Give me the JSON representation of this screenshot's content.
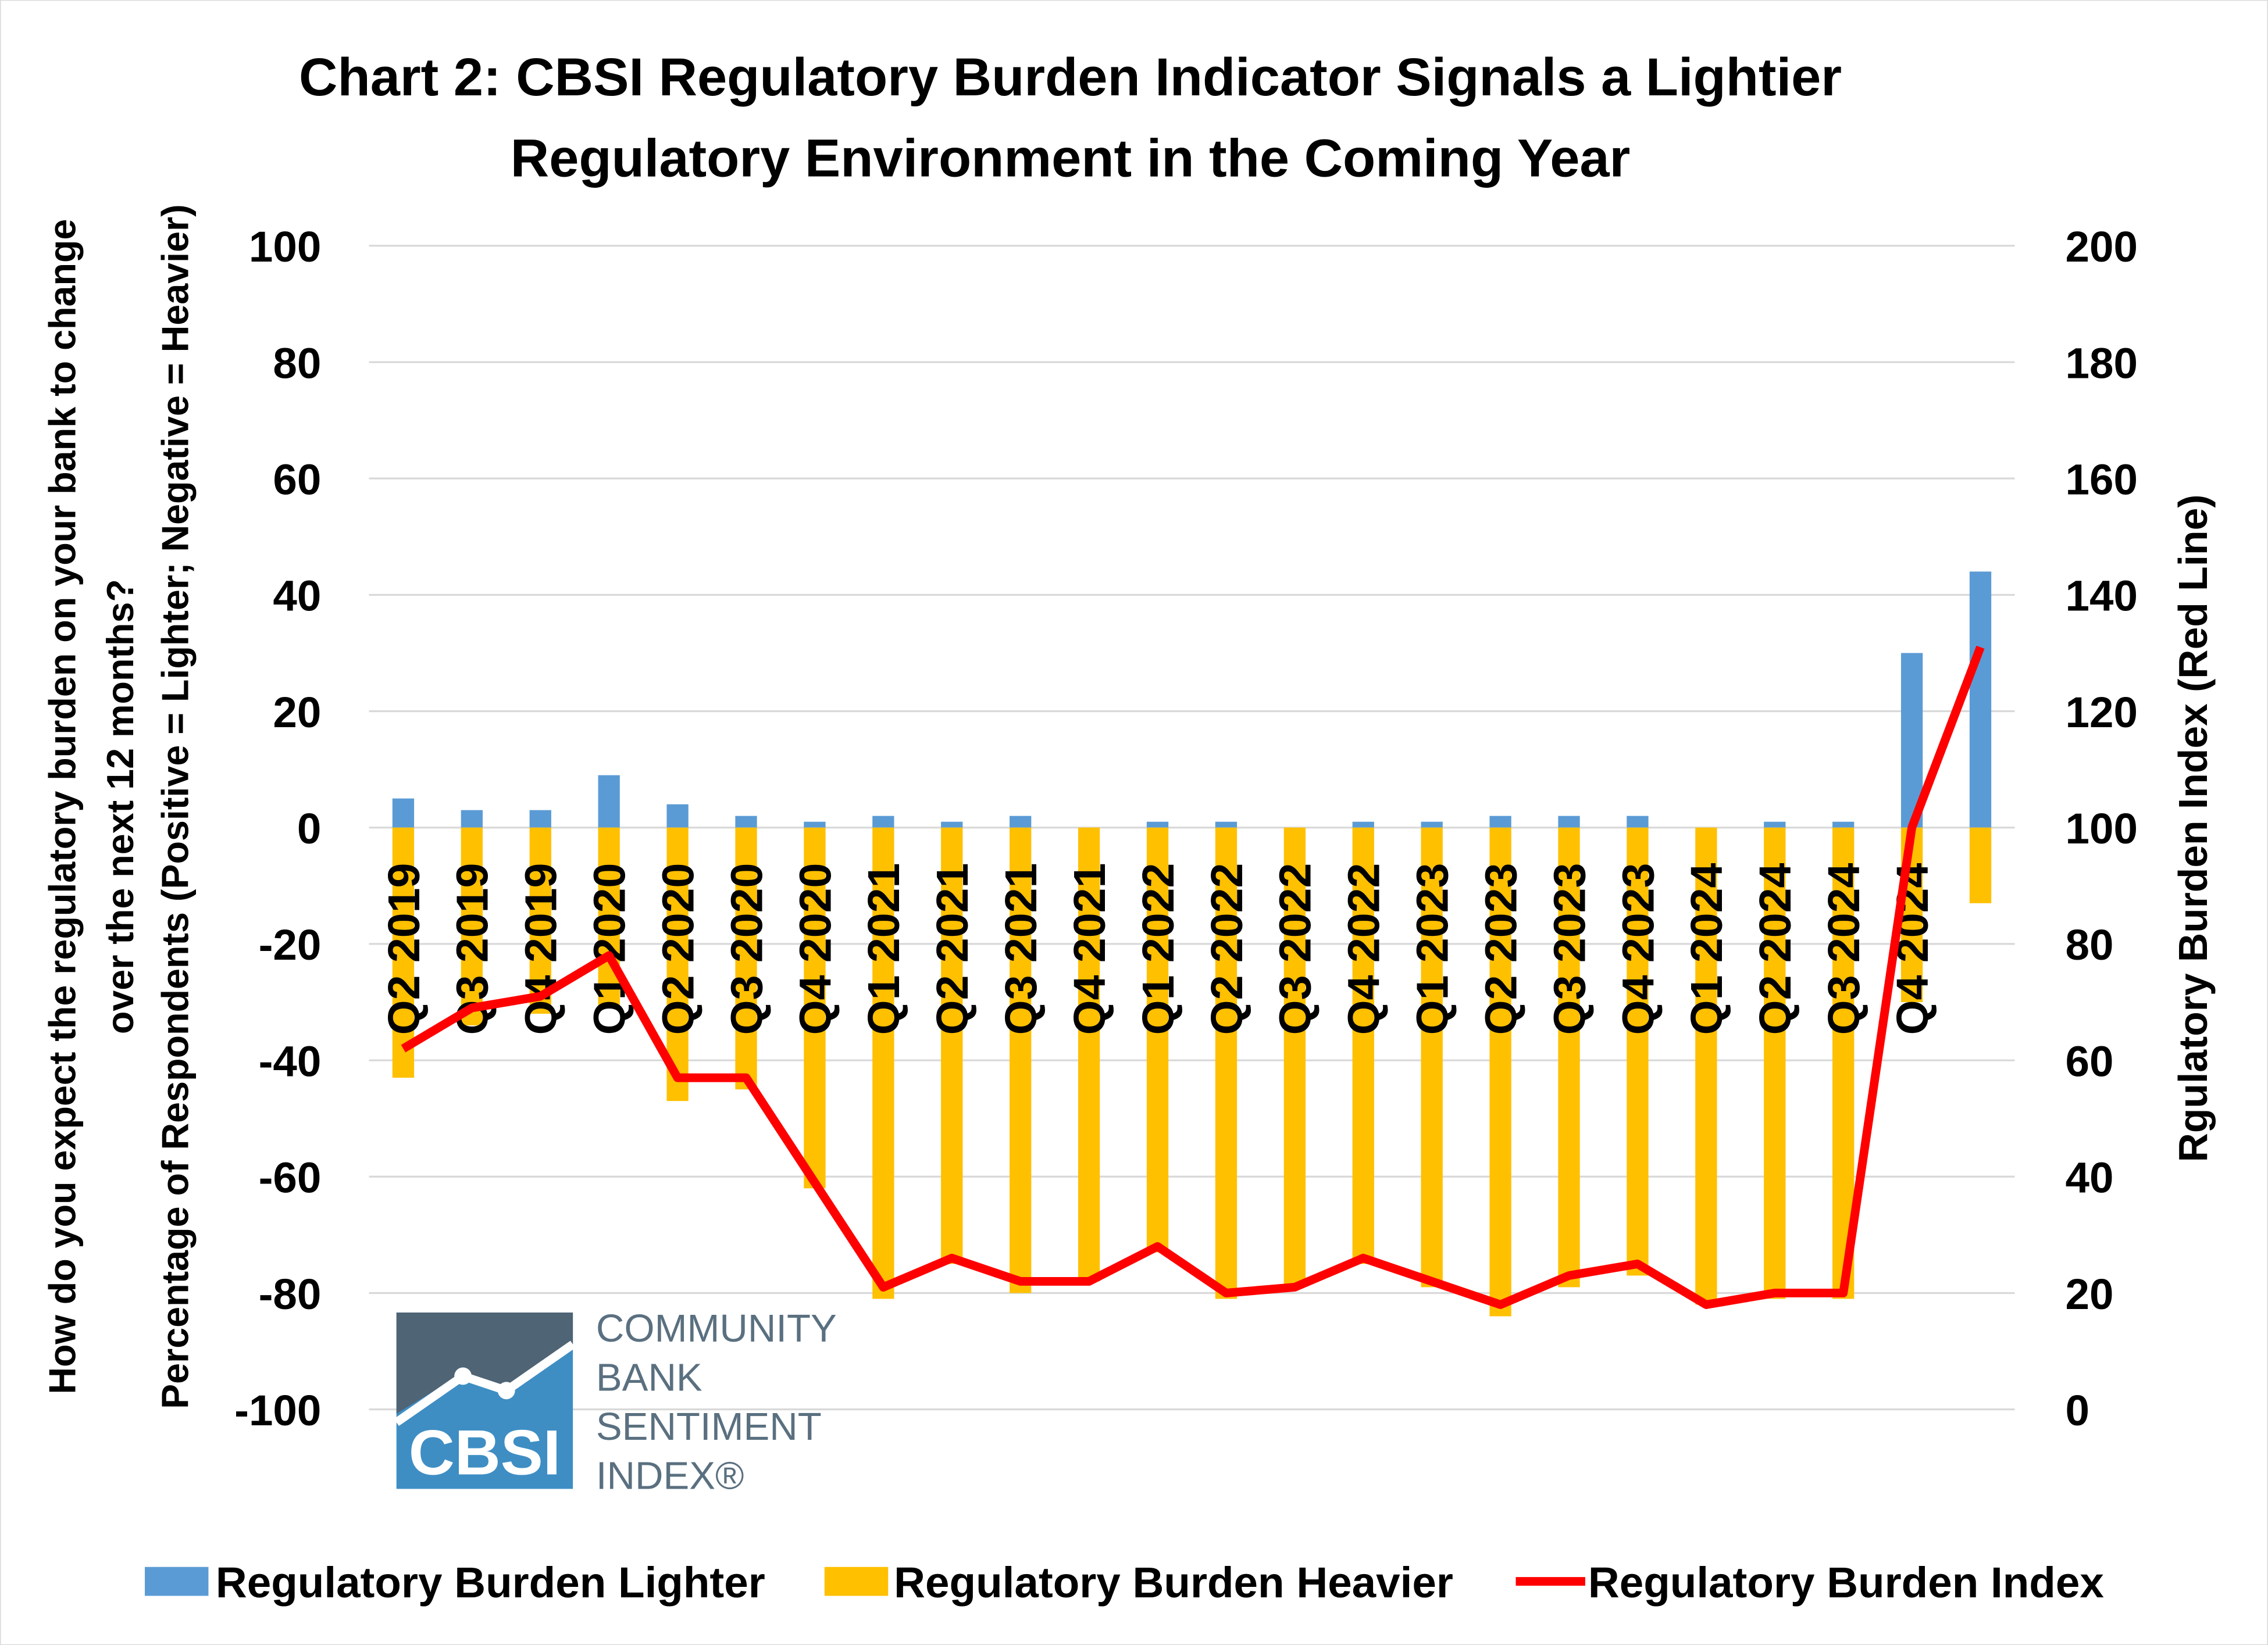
{
  "chart_data": {
    "type": "bar",
    "title_line1": "Chart 2: CBSI Regulatory Burden Indicator Signals a Lightier",
    "title_line2": "Regulatory Environment in the Coming Year",
    "ylabel_line1": "How do you expect the regulatory burden on your bank to change",
    "ylabel_line2": "over the next 12 months?",
    "ylabel_line3": "Percentage of Respondents (Positive = Lighter; Negative = Heavier)",
    "y2label": "Rgulatory Burden Index (Red Line)",
    "ylim": [
      -100,
      100
    ],
    "y2lim": [
      0,
      200
    ],
    "yticks": [
      100,
      80,
      60,
      40,
      20,
      0,
      -20,
      -40,
      -60,
      -80,
      -100
    ],
    "y2ticks": [
      200,
      180,
      160,
      140,
      120,
      100,
      80,
      60,
      40,
      20,
      0
    ],
    "grid": true,
    "legend_placement": "bottom",
    "categories": [
      "Q2 2019",
      "Q3 2019",
      "Q4 2019",
      "Q1 2020",
      "Q2 2020",
      "Q3 2020",
      "Q4 2020",
      "Q1 2021",
      "Q2 2021",
      "Q3 2021",
      "Q4 2021",
      "Q1 2022",
      "Q2 2022",
      "Q3 2022",
      "Q4 2022",
      "Q1 2023",
      "Q2 2023",
      "Q3 2023",
      "Q4 2023",
      "Q1 2024",
      "Q2 2024",
      "Q3 2024",
      "Q4 2024",
      ""
    ],
    "series": [
      {
        "name": "Regulatory Burden Lighter",
        "type": "bar",
        "axis": "left",
        "color": "#5b9bd5",
        "values": [
          5,
          3,
          3,
          9,
          4,
          2,
          1,
          2,
          1,
          2,
          0,
          1,
          1,
          0,
          1,
          1,
          2,
          2,
          2,
          0,
          1,
          1,
          30,
          44
        ]
      },
      {
        "name": "Regulatory Burden Heavier",
        "type": "bar",
        "axis": "left",
        "color": "#ffc000",
        "values": [
          -43,
          -34,
          -32,
          -31,
          -47,
          -45,
          -62,
          -81,
          -75,
          -80,
          -78,
          -73,
          -81,
          -79,
          -75,
          -79,
          -84,
          -79,
          -77,
          -82,
          -81,
          -81,
          -30,
          -13
        ]
      },
      {
        "name": "Regulatory Burden Index",
        "type": "line",
        "axis": "right",
        "color": "#ff0000",
        "values": [
          62,
          69,
          71,
          78,
          57,
          57,
          39,
          21,
          26,
          22,
          22,
          28,
          20,
          21,
          26,
          22,
          18,
          23,
          25,
          18,
          20,
          20,
          100,
          131
        ]
      }
    ]
  },
  "logo": {
    "mark_text": "CBSI",
    "line1": "COMMUNITY",
    "line2": "BANK",
    "line3": "SENTIMENT",
    "line4": "INDEX®"
  }
}
